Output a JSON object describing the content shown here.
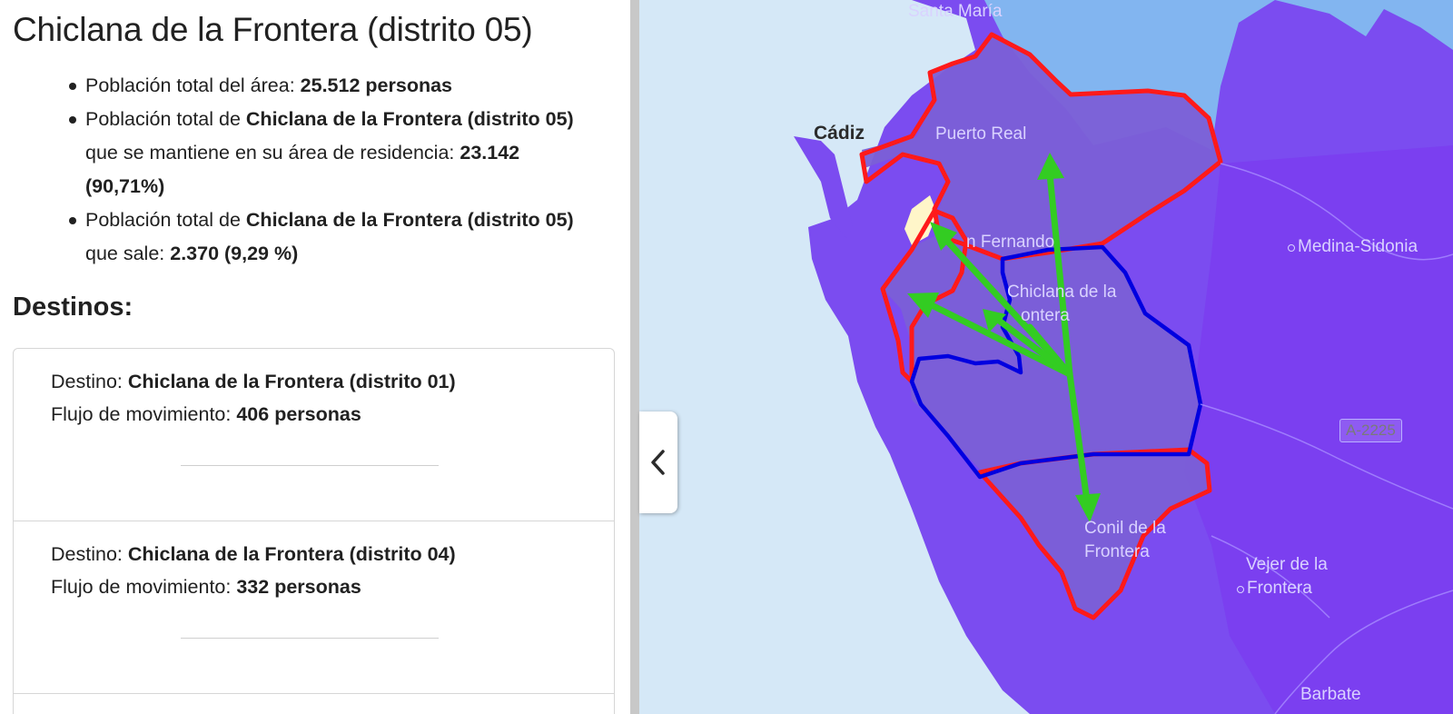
{
  "panel": {
    "title": "Chiclana de la Frontera (distrito 05)",
    "summary": {
      "item1_text": "Población total del área: ",
      "item1_value": "25.512 personas",
      "item2_text_a": "Población total de ",
      "item2_place": "Chiclana de la Frontera (distrito 05)",
      "item2_text_b": " que se mantiene en su área de residencia: ",
      "item2_value": "23.142 (90,71%)",
      "item3_text_a": "Población total de ",
      "item3_place": "Chiclana de la Frontera (distrito 05)",
      "item3_text_b": " que sale: ",
      "item3_value": "2.370 (9,29 %)"
    },
    "destinations_heading": "Destinos:",
    "destinations": [
      {
        "dest_label": "Destino: ",
        "dest_name": "Chiclana de la Frontera (distrito 01)",
        "flow_label": "Flujo de movimiento: ",
        "flow_value": "406 personas"
      },
      {
        "dest_label": "Destino: ",
        "dest_name": "Chiclana de la Frontera (distrito 04)",
        "flow_label": "Flujo de movimiento: ",
        "flow_value": "332 personas"
      }
    ]
  },
  "map": {
    "labels": {
      "santa_maria": "Santa María",
      "cadiz": "Cádiz",
      "puerto_real": "Puerto Real",
      "san_fernando": "n Fernando",
      "medina": "Medina-Sidonia",
      "chiclana_1": "Chiclana de la",
      "chiclana_2": "ontera",
      "conil_1": "Conil de la",
      "conil_2": "Frontera",
      "vejer_1": "Vejer de la",
      "vejer_2": "Frontera",
      "barbate": "Barbate",
      "road": "A-2225"
    },
    "colors": {
      "sea": "#d5e8f7",
      "land": "#7b4cf0",
      "land_light": "#82b5f0",
      "selected_area_fill": "#7b5fd6",
      "origin_border": "#0000e0",
      "destination_border": "#ff1a1a",
      "flow_arrow": "#33cc22"
    },
    "collapse_icon": "chevron-left-icon"
  }
}
